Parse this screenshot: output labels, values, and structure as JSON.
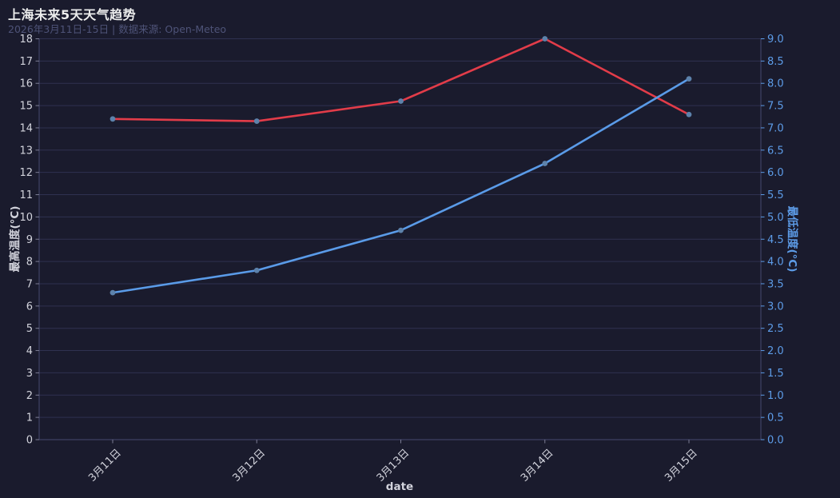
{
  "chart": {
    "title": "上海未来5天天气趋势",
    "subtitle": "2026年3月11日-15日 | 数据来源: Open-Meteo",
    "xlabel": "date",
    "left_ylabel": "最高温度(°C)",
    "right_ylabel": "最低温度(°C)"
  },
  "chart_data": {
    "type": "line",
    "title": "上海未来5天天气趋势",
    "subtitle": "2026年3月11日-15日 | 数据来源: Open-Meteo",
    "xlabel": "date",
    "categories": [
      "3月11日",
      "3月12日",
      "3月13日",
      "3月14日",
      "3月15日"
    ],
    "series": [
      {
        "name": "最高温度(°C)",
        "yaxis": "left",
        "color": "#e23c49",
        "values": [
          14.4,
          14.3,
          15.2,
          18.0,
          14.6
        ]
      },
      {
        "name": "最低温度(°C)",
        "yaxis": "right",
        "color": "#5a9be8",
        "values": [
          3.3,
          3.8,
          4.7,
          6.2,
          8.1
        ]
      }
    ],
    "ylabel_left": "最高温度(°C)",
    "ylim_left": [
      0,
      18
    ],
    "ytick_step_left": 1,
    "ylabel_right": "最低温度(°C)",
    "ylim_right": [
      0,
      9
    ],
    "ytick_step_right": 0.5,
    "grid": true,
    "legend": "none",
    "marker_color": "#5d82ab",
    "x_tick_rotation_deg": 45
  },
  "colors": {
    "background": "#1a1b2d",
    "grid": "#2f3150",
    "spine": "#46486e",
    "tick_mark": "#7c7d95",
    "title_text": "#eceded",
    "subtitle_text": "#4e5378",
    "axis_text": "#d2d3dc",
    "right_axis_text": "#5d9ce8",
    "max_temp_line": "#e23c49",
    "min_temp_line": "#5a9be8",
    "marker": "#5d82ab"
  }
}
